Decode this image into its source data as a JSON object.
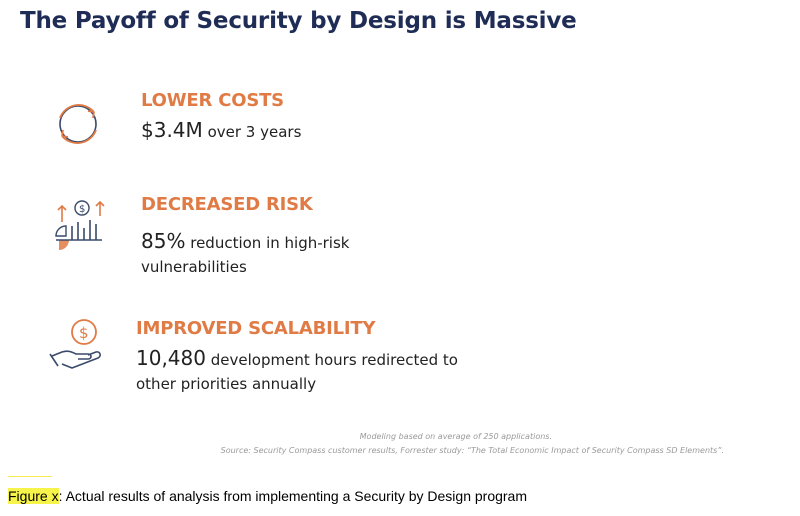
{
  "title": "The Payoff of Security by Design is Massive",
  "colors": {
    "title": "#1f2d56",
    "accent": "#e07b45",
    "icon_stroke": "#3a4a6b"
  },
  "items": [
    {
      "icon": "refresh-cycle-icon",
      "heading": "LOWER COSTS",
      "value": "$3.4M",
      "text": "over 3 years"
    },
    {
      "icon": "risk-chart-icon",
      "heading": "DECREASED RISK",
      "value": "85%",
      "text": "reduction in high-risk vulnerabilities"
    },
    {
      "icon": "hand-dollar-icon",
      "heading": "IMPROVED SCALABILITY",
      "value": "10,480",
      "text": "development hours redirected to other priorities annually"
    }
  ],
  "footnote": {
    "line1": "Modeling based on average of  250 applications.",
    "line2": "Source: Security Compass customer results, Forrester study: “The Total Economic Impact of Security Compass SD Elements”."
  },
  "caption": {
    "label": "Figure x",
    "text": ": Actual results of analysis from implementing a Security by Design program"
  }
}
